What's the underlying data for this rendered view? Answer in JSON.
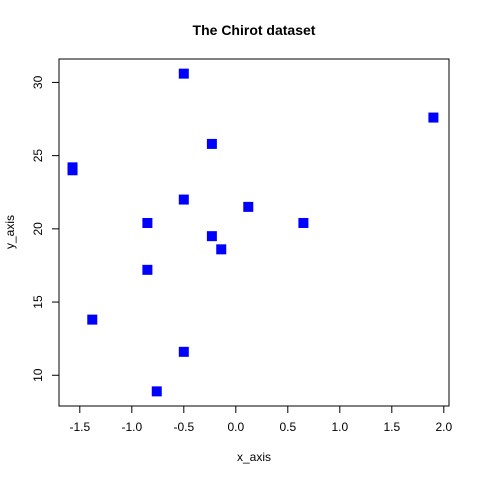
{
  "chart_data": {
    "type": "scatter",
    "title": "The Chirot dataset",
    "xlabel": "x_axis",
    "ylabel": "y_axis",
    "xlim": [
      -1.7,
      2.05
    ],
    "ylim": [
      7.9,
      31.6
    ],
    "xticks": [
      -1.5,
      -1.0,
      -0.5,
      0.0,
      0.5,
      1.0,
      1.5,
      2.0
    ],
    "xtick_labels": [
      "-1.5",
      "-1.0",
      "-0.5",
      "0.0",
      "0.5",
      "1.0",
      "1.5",
      "2.0"
    ],
    "yticks": [
      10,
      15,
      20,
      25,
      30
    ],
    "ytick_labels": [
      "10",
      "15",
      "20",
      "25",
      "30"
    ],
    "marker": "square",
    "color": "#0000ff",
    "grid": false,
    "points": [
      {
        "x": -0.5,
        "y": 30.6
      },
      {
        "x": 1.9,
        "y": 27.6
      },
      {
        "x": -0.23,
        "y": 25.8
      },
      {
        "x": -1.57,
        "y": 24.2
      },
      {
        "x": -1.57,
        "y": 24.0
      },
      {
        "x": -0.5,
        "y": 22.0
      },
      {
        "x": 0.12,
        "y": 21.5
      },
      {
        "x": -0.85,
        "y": 20.4
      },
      {
        "x": 0.65,
        "y": 20.4
      },
      {
        "x": -0.23,
        "y": 19.5
      },
      {
        "x": -0.14,
        "y": 18.6
      },
      {
        "x": -0.85,
        "y": 17.2
      },
      {
        "x": -1.38,
        "y": 13.8
      },
      {
        "x": -0.5,
        "y": 11.6
      },
      {
        "x": -0.76,
        "y": 8.9
      }
    ]
  }
}
